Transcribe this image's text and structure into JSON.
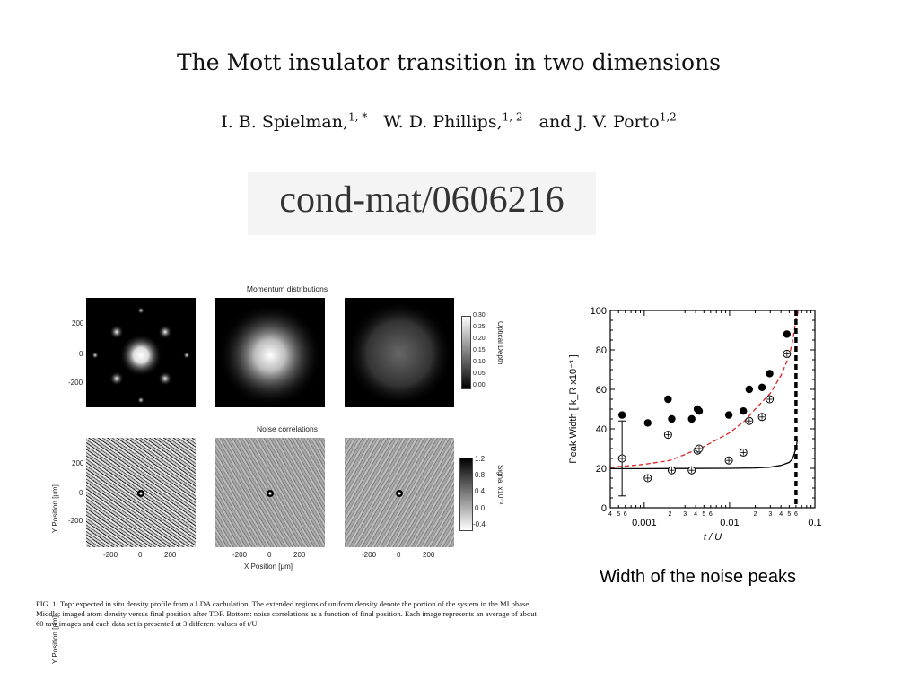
{
  "paper": {
    "title": "The Mott insulator transition in two dimensions",
    "authors": [
      {
        "name": "I. B. Spielman,",
        "sup": "1, *"
      },
      {
        "name": "W. D. Phillips,",
        "sup": "1, 2"
      },
      {
        "name": "and J. V. Porto",
        "sup": "1,2"
      }
    ],
    "arxiv_id": "cond-mat/0606216"
  },
  "figure": {
    "momentum_title": "Momentum distributions",
    "noise_title": "Noise correlations",
    "y_axis_label": "Y Position [μm]",
    "x_axis_label": "X Position [μm]",
    "y_ticks": [
      "200",
      "0",
      "-200"
    ],
    "x_ticks": [
      "-200",
      "0",
      "200"
    ],
    "optical_depth_label": "Optical Depth",
    "optical_depth_ticks": [
      "0.30",
      "0.25",
      "0.20",
      "0.15",
      "0.10",
      "0.05",
      "0.00"
    ],
    "signal_label": "Signal x10⁻³",
    "signal_ticks": [
      "1.2",
      "0.8",
      "0.4",
      "0.0",
      "-0.4"
    ],
    "caption": "FIG. 1: Top: expected in situ density profile from a LDA cachulation. The extended regions of uniform density denote the portion of the system in the MI phase. Middle: imaged atom density versus final position after TOF. Bottom: noise correlations as a function of final position. Each image represents an average of about 60 raw images and each data set is presented at 3 different values of t/U."
  },
  "side_caption": "Width of the noise peaks",
  "chart_data": {
    "type": "scatter",
    "xlabel": "t / U",
    "ylabel": "Peak Width [ k_R x10⁻³ ]",
    "x_scale": "log",
    "xlim": [
      0.0004,
      0.1
    ],
    "ylim": [
      0,
      100
    ],
    "y_ticks": [
      0,
      20,
      40,
      60,
      80,
      100
    ],
    "x_major_ticks": [
      0.001,
      0.01,
      0.1
    ],
    "x_major_labels": [
      "0.001",
      "0.01",
      "0.1"
    ],
    "x_minor_labels": [
      {
        "x": 0.0004,
        "label": "4"
      },
      {
        "x": 0.0005,
        "label": "5"
      },
      {
        "x": 0.0006,
        "label": "6"
      },
      {
        "x": 0.002,
        "label": "2"
      },
      {
        "x": 0.003,
        "label": "3"
      },
      {
        "x": 0.004,
        "label": "4"
      },
      {
        "x": 0.005,
        "label": "5"
      },
      {
        "x": 0.006,
        "label": "6"
      },
      {
        "x": 0.02,
        "label": "2"
      },
      {
        "x": 0.03,
        "label": "3"
      },
      {
        "x": 0.04,
        "label": "4"
      },
      {
        "x": 0.05,
        "label": "5"
      },
      {
        "x": 0.06,
        "label": "6"
      }
    ],
    "series": [
      {
        "marker": "filled-circle",
        "color": "#000000",
        "points": [
          [
            0.00055,
            47
          ],
          [
            0.0011,
            43
          ],
          [
            0.0019,
            55
          ],
          [
            0.0021,
            45
          ],
          [
            0.0036,
            45
          ],
          [
            0.0042,
            50
          ],
          [
            0.0044,
            49
          ],
          [
            0.0098,
            47
          ],
          [
            0.0145,
            49
          ],
          [
            0.017,
            60
          ],
          [
            0.024,
            61
          ],
          [
            0.0295,
            68
          ],
          [
            0.047,
            88
          ]
        ]
      },
      {
        "marker": "open-circle-plus",
        "color": "#000000",
        "points": [
          [
            0.00055,
            25
          ],
          [
            0.0011,
            15
          ],
          [
            0.0019,
            37
          ],
          [
            0.0021,
            19
          ],
          [
            0.0036,
            19
          ],
          [
            0.0042,
            29
          ],
          [
            0.0044,
            30
          ],
          [
            0.0098,
            24
          ],
          [
            0.0145,
            28
          ],
          [
            0.017,
            44
          ],
          [
            0.024,
            46
          ],
          [
            0.0295,
            55
          ],
          [
            0.047,
            78
          ]
        ]
      }
    ],
    "error_bar": {
      "x": 0.00055,
      "low": 6,
      "high": 44
    },
    "curves": [
      {
        "style": "solid",
        "color": "#000000",
        "points": [
          [
            0.0004,
            19.8
          ],
          [
            0.001,
            19.8
          ],
          [
            0.003,
            19.9
          ],
          [
            0.01,
            20.0
          ],
          [
            0.02,
            20.2
          ],
          [
            0.03,
            20.6
          ],
          [
            0.04,
            21.5
          ],
          [
            0.05,
            23
          ],
          [
            0.055,
            25
          ],
          [
            0.06,
            30
          ],
          [
            0.062,
            34
          ]
        ]
      },
      {
        "style": "dashed",
        "color": "#dd2222",
        "points": [
          [
            0.0004,
            20.5
          ],
          [
            0.001,
            22
          ],
          [
            0.002,
            24
          ],
          [
            0.003,
            27
          ],
          [
            0.005,
            31
          ],
          [
            0.01,
            38
          ],
          [
            0.015,
            44
          ],
          [
            0.02,
            50
          ],
          [
            0.03,
            58
          ],
          [
            0.04,
            67
          ],
          [
            0.05,
            77
          ],
          [
            0.055,
            85
          ],
          [
            0.06,
            95
          ],
          [
            0.064,
            100
          ]
        ]
      }
    ],
    "critical_line": {
      "x": 0.06,
      "style": "thick-dashed",
      "color": "#000000"
    }
  }
}
